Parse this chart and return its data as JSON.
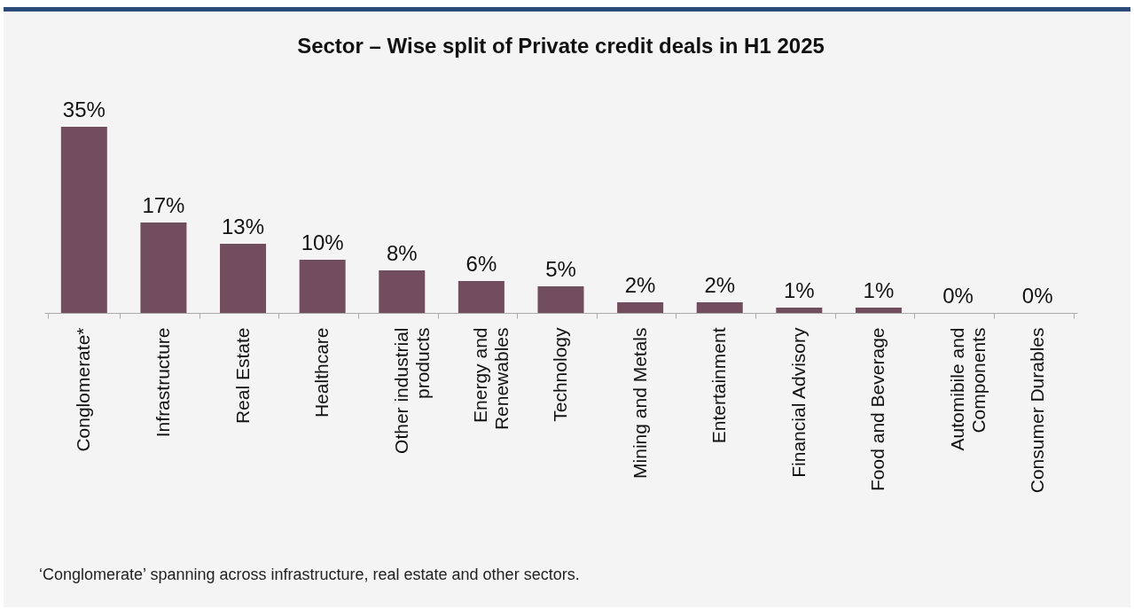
{
  "chart_data": {
    "type": "bar",
    "title": "Sector – Wise split of Private credit deals in H1 2025",
    "categories": [
      "Conglomerate*",
      "Infrastructure",
      "Real Estate",
      "Healthcare",
      "Other industrial products",
      "Energy and Renewables",
      "Technology",
      "Mining and Metals",
      "Entertainment",
      "Financial Advisory",
      "Food and Beverage",
      "Automibile and Components",
      "Consumer Durables"
    ],
    "values": [
      35,
      17,
      13,
      10,
      8,
      6,
      5,
      2,
      2,
      1,
      1,
      0,
      0
    ],
    "value_labels": [
      "35%",
      "17%",
      "13%",
      "10%",
      "8%",
      "6%",
      "5%",
      "2%",
      "2%",
      "1%",
      "1%",
      "0%",
      "0%"
    ],
    "color": "#714d5e",
    "grid": false,
    "annotations": [
      "‘Conglomerate’ spanning across infrastructure, real estate and other sectors."
    ]
  }
}
